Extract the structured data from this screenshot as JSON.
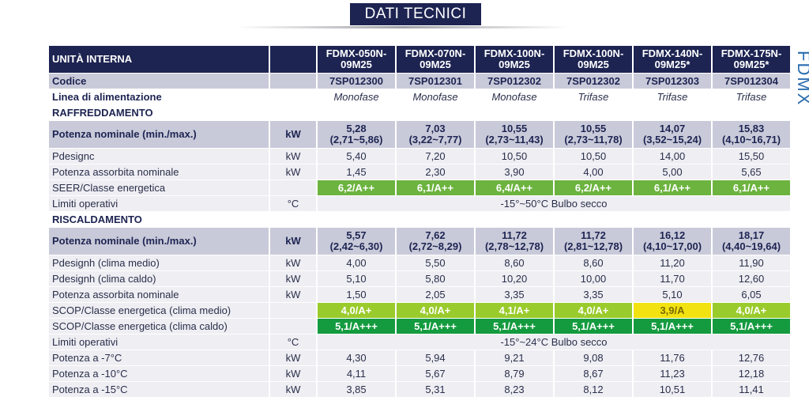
{
  "title": "DATI TECNICI",
  "side_label": "FDMX",
  "header": {
    "label": "UNITÀ INTERNA",
    "models": [
      "FDMX-050N-\n09M25",
      "FDMX-070N-\n09M25",
      "FDMX-100N-\n09M25",
      "FDMX-100N-\n09M25",
      "FDMX-140N-\n09M25*",
      "FDMX-175N-\n09M25*"
    ]
  },
  "codice": {
    "label": "Codice",
    "values": [
      "7SP012300",
      "7SP012301",
      "7SP012302",
      "7SP012302",
      "7SP012303",
      "7SP012304"
    ]
  },
  "linea": {
    "label": "Linea di alimentazione",
    "values": [
      "Monofase",
      "Monofase",
      "Monofase",
      "Trifase",
      "Trifase",
      "Trifase"
    ]
  },
  "cooling": {
    "section": "RAFFREDDAMENTO",
    "nominal": {
      "label": "Potenza nominale (min./max.)",
      "unit": "kW",
      "values": [
        "5,28\n(2,71~5,86)",
        "7,03\n(3,22~7,77)",
        "10,55\n(2,73~11,43)",
        "10,55\n(2,73~11,78)",
        "14,07\n(3,52~15,24)",
        "15,83\n(4,10~16,71)"
      ]
    },
    "pdesignc": {
      "label": "Pdesignc",
      "unit": "kW",
      "values": [
        "5,40",
        "7,20",
        "10,50",
        "10,50",
        "14,00",
        "15,50"
      ]
    },
    "absorbed": {
      "label": "Potenza assorbita nominale",
      "unit": "kW",
      "values": [
        "1,45",
        "2,30",
        "3,90",
        "4,00",
        "5,00",
        "5,65"
      ]
    },
    "seer": {
      "label": "SEER/Classe energetica",
      "unit": "",
      "values": [
        "6,2/A++",
        "6,1/A++",
        "6,4/A++",
        "6,2/A++",
        "6,1/A++",
        "6,1/A++"
      ]
    },
    "limits": {
      "label": "Limiti operativi",
      "unit": "°C",
      "value": "-15°~50°C Bulbo secco"
    }
  },
  "heating": {
    "section": "RISCALDAMENTO",
    "nominal": {
      "label": "Potenza nominale (min./max.)",
      "unit": "kW",
      "values": [
        "5,57\n(2,42~6,30)",
        "7,62\n(2,72~8,29)",
        "11,72\n(2,78~12,78)",
        "11,72\n(2,81~12,78)",
        "16,12\n(4,10~17,00)",
        "18,17\n(4,40~19,64)"
      ]
    },
    "pdesignh_medio": {
      "label": "Pdesignh (clima medio)",
      "unit": "kW",
      "values": [
        "4,00",
        "5,50",
        "8,60",
        "8,60",
        "11,20",
        "11,90"
      ]
    },
    "pdesignh_caldo": {
      "label": "Pdesignh (clima caldo)",
      "unit": "kW",
      "values": [
        "5,10",
        "5,80",
        "10,20",
        "10,00",
        "11,70",
        "12,60"
      ]
    },
    "absorbed": {
      "label": "Potenza assorbita nominale",
      "unit": "kW",
      "values": [
        "1,50",
        "2,05",
        "3,35",
        "3,35",
        "5,10",
        "6,05"
      ]
    },
    "scop_medio": {
      "label": "SCOP/Classe energetica (clima medio)",
      "unit": "",
      "values": [
        "4,0/A+",
        "4,0/A+",
        "4,1/A+",
        "4,0/A+",
        "3,9/A",
        "4,0/A+"
      ]
    },
    "scop_caldo": {
      "label": "SCOP/Classe energetica (clima caldo)",
      "unit": "",
      "values": [
        "5,1/A+++",
        "5,1/A+++",
        "5,1/A+++",
        "5,1/A+++",
        "5,1/A+++",
        "5,1/A+++"
      ]
    },
    "limits": {
      "label": "Limiti operativi",
      "unit": "°C",
      "value": "-15°~24°C Bulbo secco"
    },
    "p7": {
      "label": "Potenza a -7°C",
      "unit": "kW",
      "values": [
        "4,30",
        "5,94",
        "9,21",
        "9,08",
        "11,76",
        "12,76"
      ]
    },
    "p10": {
      "label": "Potenza a -10°C",
      "unit": "kW",
      "values": [
        "4,11",
        "5,67",
        "8,79",
        "8,67",
        "11,23",
        "12,18"
      ]
    },
    "p15": {
      "label": "Potenza a -15°C",
      "unit": "kW",
      "values": [
        "3,85",
        "5,31",
        "8,23",
        "8,12",
        "10,51",
        "11,41"
      ]
    }
  },
  "colors": {
    "navy": "#1d2452",
    "green": "#6cb33f",
    "lime": "#9acb2c",
    "darkgreen": "#149b3f",
    "yellow": "#f2e211"
  }
}
